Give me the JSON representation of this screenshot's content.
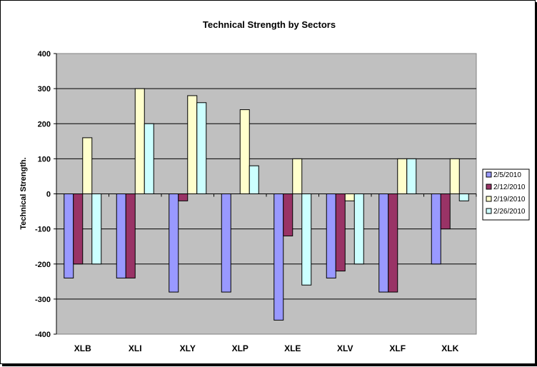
{
  "chart_data": {
    "type": "bar",
    "title": "Technical Strength by Sectors",
    "ylabel": "Technical Strength.",
    "xlabel": "",
    "ylim": [
      -400,
      400
    ],
    "yticks": [
      400,
      300,
      200,
      100,
      0,
      -100,
      -200,
      -300,
      -400
    ],
    "grid": true,
    "legend_position": "right",
    "plot_background": "#c0c0c0",
    "categories": [
      "XLB",
      "XLI",
      "XLY",
      "XLP",
      "XLE",
      "XLV",
      "XLF",
      "XLK"
    ],
    "series": [
      {
        "name": "2/5/2010",
        "color": "#9999ff",
        "values": [
          -240,
          -240,
          -280,
          -280,
          -360,
          -240,
          -280,
          -200
        ]
      },
      {
        "name": "2/12/2010",
        "color": "#993366",
        "values": [
          -200,
          -240,
          -20,
          0,
          -120,
          -220,
          -280,
          -100
        ]
      },
      {
        "name": "2/19/2010",
        "color": "#ffffcc",
        "values": [
          160,
          300,
          280,
          240,
          100,
          -20,
          100,
          100
        ]
      },
      {
        "name": "2/26/2010",
        "color": "#ccffff",
        "values": [
          -200,
          200,
          260,
          80,
          -260,
          -200,
          100,
          -20
        ]
      }
    ]
  }
}
